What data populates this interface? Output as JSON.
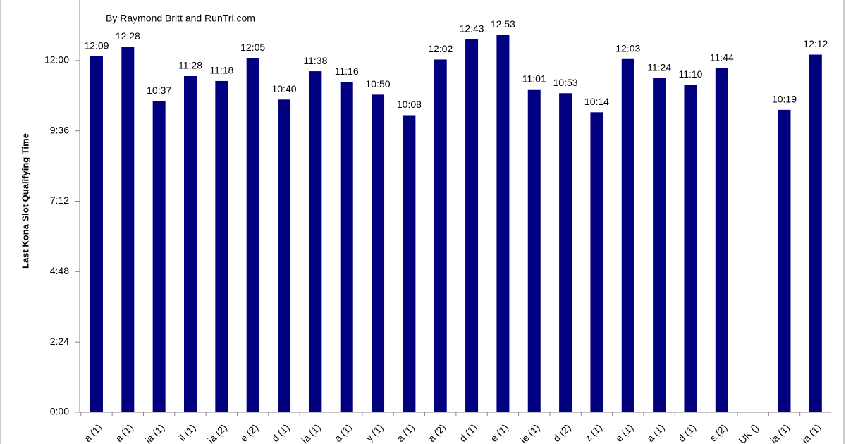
{
  "chart_data": {
    "type": "bar",
    "subtitle": "By Raymond Britt and RunTri.com",
    "y_label": "Last Kona Slot Qualifying Time",
    "categories": [
      "a (1)",
      "a (1)",
      "ia (1)",
      "il (1)",
      "ia (2)",
      "e (2)",
      "d (1)",
      "ia (1)",
      "a (1)",
      "y (1)",
      "a (1)",
      "a (2)",
      "d (1)",
      "e (1)",
      "ie (1)",
      "d (2)",
      "z (1)",
      "e (1)",
      "a (1)",
      "d (1)",
      "s (2)",
      "UK ()",
      "ia (1)",
      "ia (1)"
    ],
    "values": [
      729,
      748,
      637,
      688,
      678,
      725,
      640,
      698,
      676,
      650,
      608,
      722,
      763,
      773,
      661,
      653,
      614,
      723,
      684,
      670,
      704,
      null,
      619,
      732
    ],
    "value_labels": [
      "12:09",
      "12:28",
      "10:37",
      "11:28",
      "11:18",
      "12:05",
      "10:40",
      "11:38",
      "11:16",
      "10:50",
      "10:08",
      "12:02",
      "12:43",
      "12:53",
      "11:01",
      "10:53",
      "10:14",
      "12:03",
      "11:24",
      "11:10",
      "11:44",
      null,
      "10:19",
      "12:12"
    ],
    "color": "#000080",
    "ylim": [
      0,
      864
    ],
    "yticks": [
      {
        "value": 0,
        "label": "0:00"
      },
      {
        "value": 144,
        "label": "2:24"
      },
      {
        "value": 288,
        "label": "4:48"
      },
      {
        "value": 432,
        "label": "7:12"
      },
      {
        "value": 576,
        "label": "9:36"
      },
      {
        "value": 720,
        "label": "12:00"
      }
    ],
    "grid": false
  }
}
